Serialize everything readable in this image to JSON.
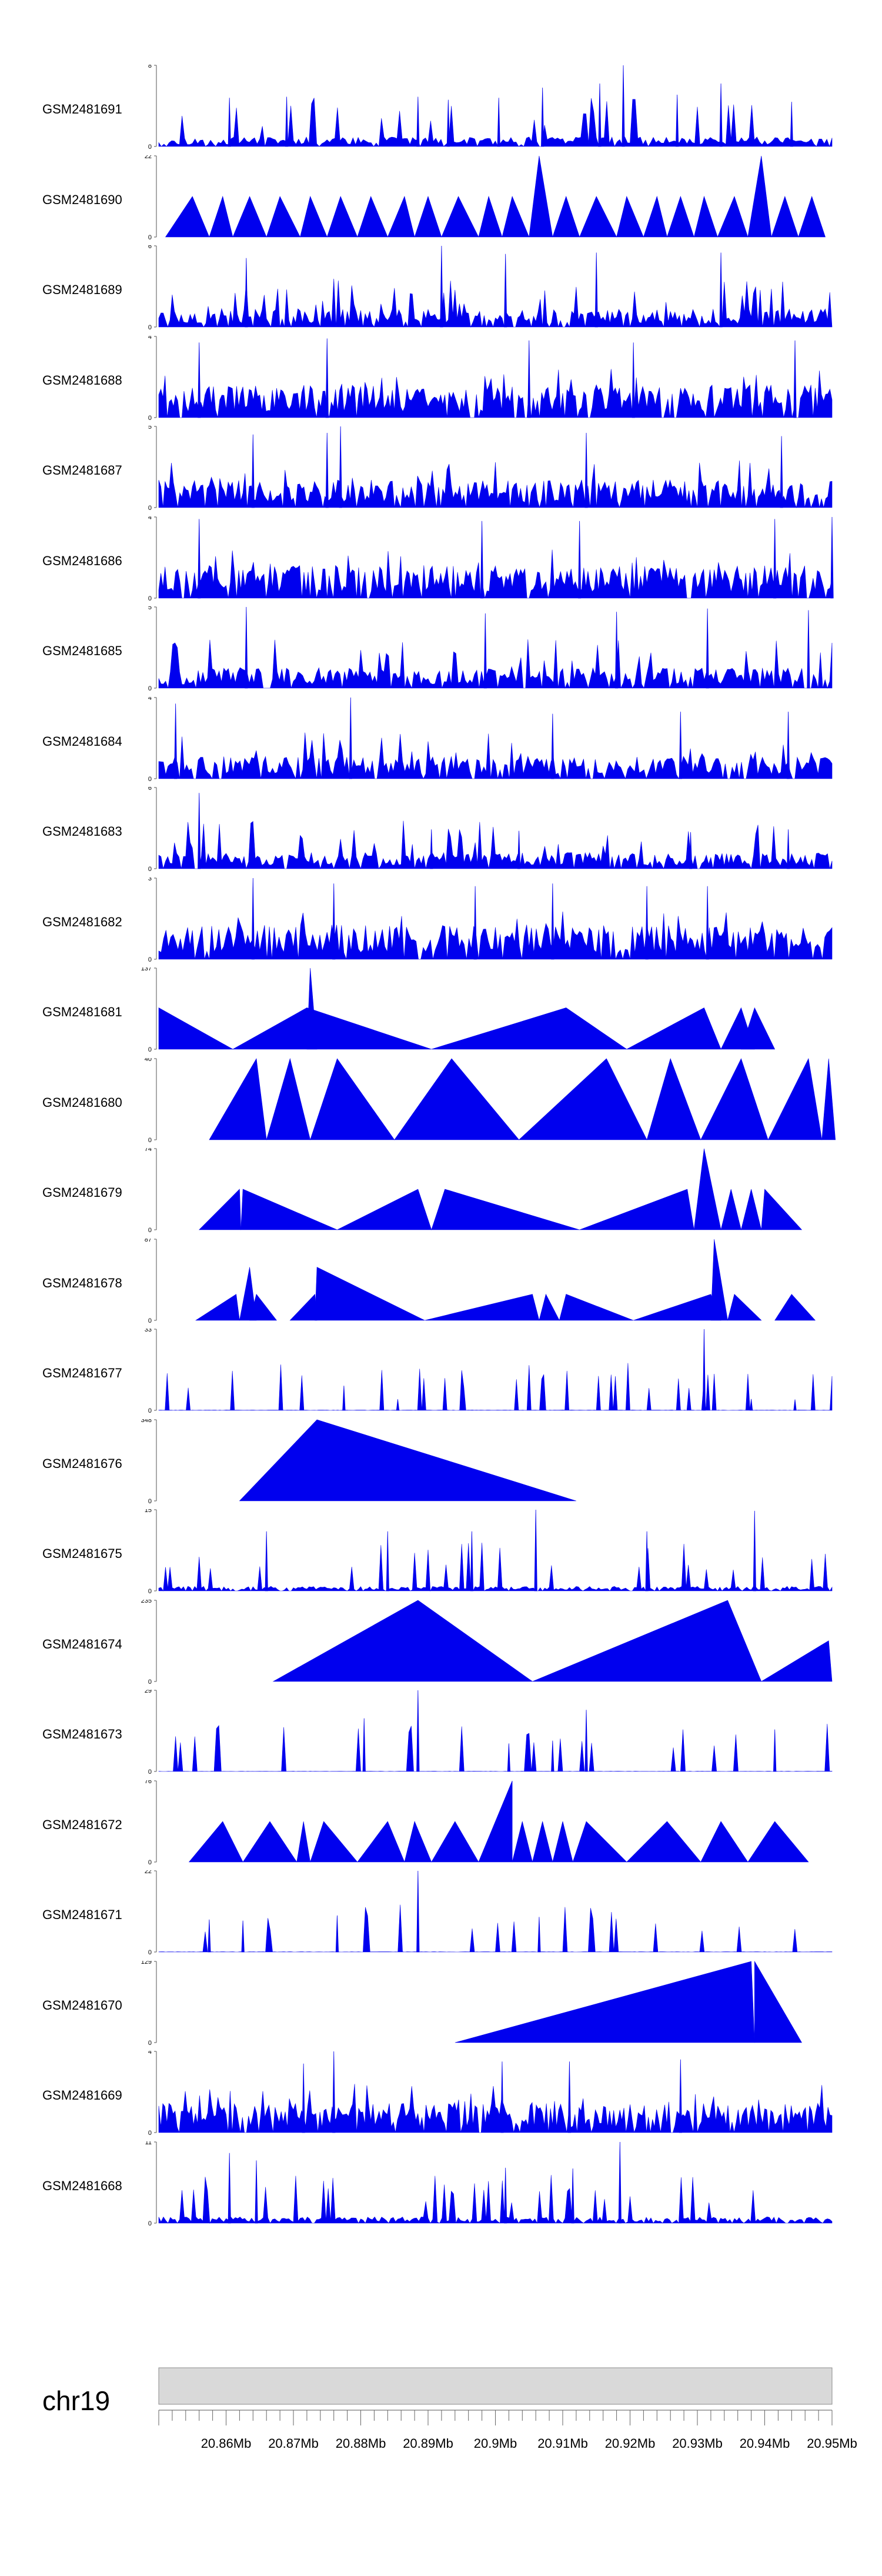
{
  "chart_data": {
    "type": "area",
    "chromosome": "chr19",
    "xlim": [
      20.85,
      20.95
    ],
    "xticks": [
      {
        "value": 20.86,
        "label": "20.86Mb"
      },
      {
        "value": 20.87,
        "label": "20.87Mb"
      },
      {
        "value": 20.88,
        "label": "20.88Mb"
      },
      {
        "value": 20.89,
        "label": "20.89Mb"
      },
      {
        "value": 20.9,
        "label": "20.9Mb"
      },
      {
        "value": 20.91,
        "label": "20.91Mb"
      },
      {
        "value": 20.92,
        "label": "20.92Mb"
      },
      {
        "value": 20.93,
        "label": "20.93Mb"
      },
      {
        "value": 20.94,
        "label": "20.94Mb"
      },
      {
        "value": 20.95,
        "label": "20.95Mb"
      }
    ],
    "color": "#0000ee",
    "series": [
      {
        "name": "GSM2481691",
        "ymax": 8,
        "style": "noise",
        "density": 260,
        "typical": 0.55,
        "seed": 11,
        "peaks": [
          [
            20.919,
            8
          ],
          [
            20.9155,
            6.2
          ],
          [
            20.907,
            5.8
          ],
          [
            20.9335,
            6.2
          ],
          [
            20.927,
            5.1
          ],
          [
            20.8885,
            4.9
          ],
          [
            20.869,
            4.9
          ],
          [
            20.9005,
            4.8
          ],
          [
            20.8605,
            4.8
          ],
          [
            20.893,
            4.6
          ],
          [
            20.944,
            4.4
          ]
        ]
      },
      {
        "name": "GSM2481690",
        "ymax": 22,
        "style": "tri",
        "tris": [
          [
            20.851,
            20.8575,
            20.855,
            11
          ],
          [
            20.8575,
            20.861,
            20.8595,
            11
          ],
          [
            20.861,
            20.866,
            20.8635,
            11
          ],
          [
            20.866,
            20.871,
            20.868,
            11
          ],
          [
            20.871,
            20.875,
            20.8725,
            11
          ],
          [
            20.875,
            20.8795,
            20.877,
            11
          ],
          [
            20.8795,
            20.884,
            20.8815,
            11
          ],
          [
            20.884,
            20.888,
            20.8865,
            11
          ],
          [
            20.888,
            20.892,
            20.89,
            11
          ],
          [
            20.892,
            20.8975,
            20.8945,
            11
          ],
          [
            20.8975,
            20.901,
            20.899,
            11
          ],
          [
            20.901,
            20.905,
            20.9025,
            11
          ],
          [
            20.905,
            20.9085,
            20.9065,
            22
          ],
          [
            20.9085,
            20.9125,
            20.9105,
            11
          ],
          [
            20.9125,
            20.918,
            20.915,
            11
          ],
          [
            20.918,
            20.922,
            20.9195,
            11
          ],
          [
            20.922,
            20.9255,
            20.924,
            11
          ],
          [
            20.9255,
            20.9295,
            20.9275,
            11
          ],
          [
            20.9295,
            20.933,
            20.931,
            11
          ],
          [
            20.933,
            20.9375,
            20.9355,
            11
          ],
          [
            20.9375,
            20.941,
            20.9395,
            22
          ],
          [
            20.941,
            20.945,
            20.943,
            11
          ],
          [
            20.945,
            20.949,
            20.947,
            11
          ]
        ]
      },
      {
        "name": "GSM2481689",
        "ymax": 6,
        "style": "noise",
        "density": 300,
        "typical": 0.8,
        "seed": 23,
        "peaks": [
          [
            20.892,
            6
          ],
          [
            20.915,
            5.5
          ],
          [
            20.9335,
            5.5
          ],
          [
            20.9015,
            5.4
          ],
          [
            20.863,
            5.1
          ]
        ]
      },
      {
        "name": "GSM2481688",
        "ymax": 4,
        "style": "noise",
        "density": 320,
        "typical": 0.95,
        "seed": 37,
        "peaks": [
          [
            20.875,
            3.9
          ],
          [
            20.905,
            3.8
          ],
          [
            20.9445,
            3.8
          ],
          [
            20.856,
            3.7
          ],
          [
            20.9205,
            3.7
          ]
        ]
      },
      {
        "name": "GSM2481687",
        "ymax": 5,
        "style": "noise",
        "density": 320,
        "typical": 1.0,
        "seed": 41,
        "peaks": [
          [
            20.877,
            5
          ],
          [
            20.875,
            4.6
          ],
          [
            20.9135,
            4.6
          ],
          [
            20.9425,
            4.4
          ],
          [
            20.864,
            4.5
          ]
        ]
      },
      {
        "name": "GSM2481686",
        "ymax": 4,
        "style": "noise",
        "density": 320,
        "typical": 0.95,
        "seed": 53,
        "peaks": [
          [
            20.95,
            4
          ],
          [
            20.856,
            3.9
          ],
          [
            20.9415,
            3.9
          ],
          [
            20.898,
            3.8
          ],
          [
            20.9125,
            3.8
          ]
        ]
      },
      {
        "name": "GSM2481685",
        "ymax": 5,
        "style": "noise",
        "density": 290,
        "typical": 0.75,
        "seed": 67,
        "peaks": [
          [
            20.863,
            5
          ],
          [
            20.9315,
            4.9
          ],
          [
            20.9465,
            4.8
          ],
          [
            20.918,
            4.7
          ],
          [
            20.8985,
            4.6
          ]
        ]
      },
      {
        "name": "GSM2481684",
        "ymax": 4,
        "style": "noise",
        "density": 290,
        "typical": 0.65,
        "seed": 71,
        "peaks": [
          [
            20.8785,
            4
          ],
          [
            20.8525,
            3.7
          ],
          [
            20.9435,
            3.3
          ],
          [
            20.9275,
            3.3
          ],
          [
            20.9085,
            3.2
          ]
        ]
      },
      {
        "name": "GSM2481683",
        "ymax": 6,
        "style": "noise",
        "density": 300,
        "typical": 0.7,
        "seed": 83,
        "peaks": [
          [
            20.856,
            5.6
          ],
          [
            20.8905,
            2.9
          ],
          [
            20.9435,
            2.9
          ],
          [
            20.929,
            2.7
          ],
          [
            20.9035,
            2.8
          ]
        ]
      },
      {
        "name": "GSM2481682",
        "ymax": 3,
        "style": "noise",
        "density": 280,
        "typical": 0.75,
        "seed": 97,
        "peaks": [
          [
            20.864,
            3
          ],
          [
            20.876,
            2.8
          ],
          [
            20.9085,
            2.8
          ],
          [
            20.9225,
            2.7
          ],
          [
            20.9315,
            2.7
          ],
          [
            20.897,
            2.7
          ]
        ]
      },
      {
        "name": "GSM2481681",
        "ymax": 137,
        "style": "tri",
        "tris": [
          [
            20.85,
            20.861,
            20.85,
            70
          ],
          [
            20.861,
            20.8905,
            20.872,
            70
          ],
          [
            20.872,
            20.8735,
            20.8725,
            137
          ],
          [
            20.8905,
            20.9195,
            20.9105,
            70
          ],
          [
            20.9195,
            20.9335,
            20.931,
            70
          ],
          [
            20.9335,
            20.9385,
            20.9365,
            70
          ],
          [
            20.9365,
            20.9415,
            20.9385,
            70
          ]
        ]
      },
      {
        "name": "GSM2481680",
        "ymax": 40,
        "style": "tri",
        "tris": [
          [
            20.8575,
            20.866,
            20.8645,
            40
          ],
          [
            20.866,
            20.8725,
            20.8695,
            40
          ],
          [
            20.8725,
            20.885,
            20.8765,
            40
          ],
          [
            20.885,
            20.9035,
            20.8935,
            40
          ],
          [
            20.9035,
            20.9225,
            20.9165,
            40
          ],
          [
            20.9225,
            20.9305,
            20.926,
            40
          ],
          [
            20.9305,
            20.9405,
            20.9365,
            40
          ],
          [
            20.9405,
            20.9485,
            20.9465,
            40
          ],
          [
            20.9485,
            20.9505,
            20.9495,
            40
          ]
        ]
      },
      {
        "name": "GSM2481679",
        "ymax": 74,
        "style": "tri",
        "tris": [
          [
            20.856,
            20.8622,
            20.862,
            37
          ],
          [
            20.8622,
            20.8765,
            20.8625,
            37
          ],
          [
            20.8765,
            20.8905,
            20.8885,
            37
          ],
          [
            20.8905,
            20.9125,
            20.8925,
            37
          ],
          [
            20.9125,
            20.9295,
            20.9285,
            37
          ],
          [
            20.9295,
            20.9335,
            20.931,
            74
          ],
          [
            20.9335,
            20.9365,
            20.935,
            37
          ],
          [
            20.9365,
            20.9395,
            20.938,
            37
          ],
          [
            20.9395,
            20.9455,
            20.94,
            37
          ]
        ]
      },
      {
        "name": "GSM2481678",
        "ymax": 87,
        "style": "tri",
        "tris": [
          [
            20.8555,
            20.862,
            20.8615,
            28
          ],
          [
            20.862,
            20.8645,
            20.8635,
            57
          ],
          [
            20.8635,
            20.8675,
            20.8645,
            28
          ],
          [
            20.8695,
            20.8735,
            20.8732,
            28
          ],
          [
            20.8732,
            20.8895,
            20.8735,
            57
          ],
          [
            20.8895,
            20.9065,
            20.9055,
            28
          ],
          [
            20.9065,
            20.9095,
            20.9075,
            28
          ],
          [
            20.9095,
            20.9205,
            20.9105,
            28
          ],
          [
            20.9205,
            20.9335,
            20.932,
            28
          ],
          [
            20.932,
            20.9345,
            20.9325,
            87
          ],
          [
            20.9345,
            20.9395,
            20.9355,
            28
          ],
          [
            20.9415,
            20.9475,
            20.944,
            28
          ]
        ]
      },
      {
        "name": "GSM2481677",
        "ymax": 33,
        "style": "noise",
        "density": 320,
        "typical": 0.08,
        "seed": 101,
        "peaks": [
          [
            20.931,
            33
          ],
          [
            20.8775,
            10
          ],
          [
            20.938,
            4.6
          ],
          [
            20.8855,
            4.5
          ],
          [
            20.9445,
            4.4
          ]
        ]
      },
      {
        "name": "GSM2481676",
        "ymax": 348,
        "style": "tri",
        "tris": [
          [
            20.862,
            20.912,
            20.8735,
            348
          ]
        ]
      },
      {
        "name": "GSM2481675",
        "ymax": 15,
        "style": "noise",
        "density": 300,
        "typical": 0.5,
        "seed": 113,
        "peaks": [
          [
            20.906,
            15
          ],
          [
            20.9385,
            14.8
          ],
          [
            20.8965,
            11
          ],
          [
            20.884,
            11
          ],
          [
            20.866,
            11
          ],
          [
            20.9225,
            11
          ]
        ]
      },
      {
        "name": "GSM2481674",
        "ymax": 235,
        "style": "tri",
        "tris": [
          [
            20.867,
            20.9055,
            20.8885,
            235
          ],
          [
            20.9055,
            20.9395,
            20.9345,
            235
          ],
          [
            20.9395,
            20.95,
            20.9495,
            118
          ]
        ]
      },
      {
        "name": "GSM2481673",
        "ymax": 29,
        "style": "noise",
        "density": 280,
        "typical": 0.05,
        "seed": 127,
        "peaks": [
          [
            20.8885,
            29
          ],
          [
            20.9135,
            22
          ],
          [
            20.8805,
            19
          ],
          [
            20.9415,
            15
          ],
          [
            20.9085,
            11
          ],
          [
            20.902,
            10
          ]
        ]
      },
      {
        "name": "GSM2481672",
        "ymax": 76,
        "style": "tri",
        "tris": [
          [
            20.8545,
            20.8625,
            20.8595,
            38
          ],
          [
            20.8625,
            20.8705,
            20.8665,
            38
          ],
          [
            20.8705,
            20.8725,
            20.8715,
            38
          ],
          [
            20.8725,
            20.8795,
            20.8745,
            38
          ],
          [
            20.8795,
            20.8865,
            20.884,
            38
          ],
          [
            20.8865,
            20.8905,
            20.888,
            38
          ],
          [
            20.8905,
            20.8975,
            20.894,
            38
          ],
          [
            20.8975,
            20.9025,
            20.9025,
            76
          ],
          [
            20.9025,
            20.9055,
            20.904,
            38
          ],
          [
            20.9055,
            20.9085,
            20.907,
            38
          ],
          [
            20.9085,
            20.9115,
            20.91,
            38
          ],
          [
            20.9115,
            20.9195,
            20.9135,
            38
          ],
          [
            20.9195,
            20.9305,
            20.9255,
            38
          ],
          [
            20.9305,
            20.9375,
            20.9335,
            38
          ],
          [
            20.9375,
            20.9465,
            20.9415,
            38
          ]
        ]
      },
      {
        "name": "GSM2481671",
        "ymax": 22,
        "style": "noise",
        "density": 290,
        "typical": 0.05,
        "seed": 131,
        "peaks": [
          [
            20.8885,
            22
          ],
          [
            20.8765,
            9.9
          ],
          [
            20.9065,
            9.5
          ],
          [
            20.8575,
            8.8
          ],
          [
            20.8625,
            8.5
          ]
        ]
      },
      {
        "name": "GSM2481670",
        "ymax": 129,
        "style": "tri",
        "tris": [
          [
            20.894,
            20.9385,
            20.938,
            129
          ],
          [
            20.9385,
            20.9455,
            20.9385,
            129
          ]
        ]
      },
      {
        "name": "GSM2481669",
        "ymax": 4,
        "style": "noise",
        "density": 330,
        "typical": 0.85,
        "seed": 139,
        "peaks": [
          [
            20.876,
            4
          ],
          [
            20.9275,
            3.6
          ],
          [
            20.901,
            3.5
          ],
          [
            20.911,
            3.5
          ],
          [
            20.8715,
            3.4
          ]
        ]
      },
      {
        "name": "GSM2481668",
        "ymax": 11,
        "style": "noise",
        "density": 290,
        "typical": 0.5,
        "seed": 151,
        "peaks": [
          [
            20.9185,
            11
          ],
          [
            20.8605,
            9.5
          ],
          [
            20.8645,
            8.5
          ],
          [
            20.9015,
            7.5
          ],
          [
            20.9115,
            7.4
          ]
        ]
      }
    ]
  }
}
